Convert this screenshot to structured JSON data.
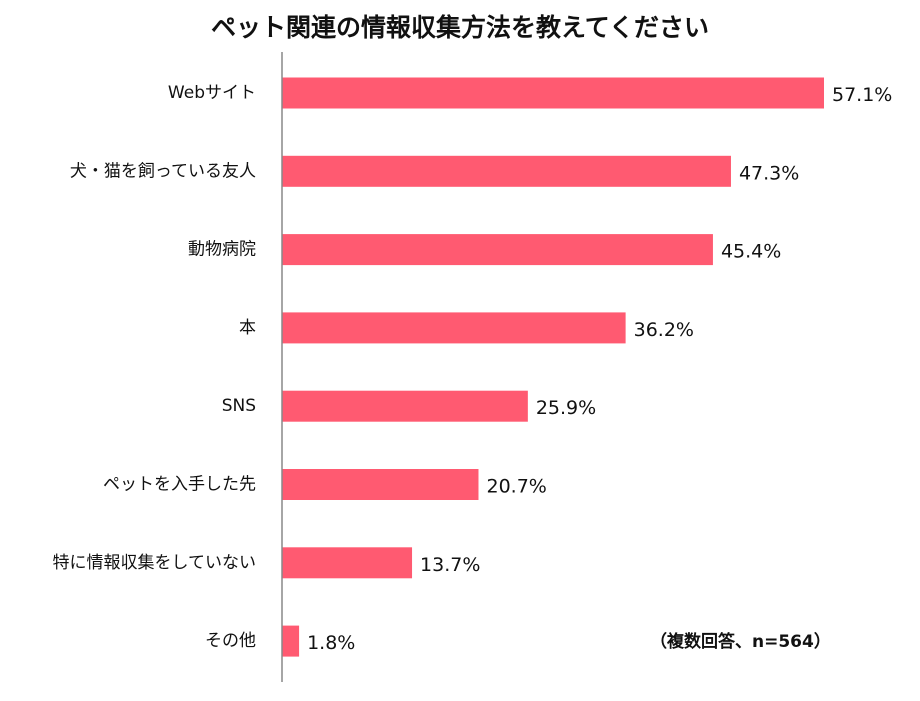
{
  "chart_data": {
    "type": "bar",
    "orientation": "horizontal",
    "title": "ペット関連の情報収集方法を教えてください",
    "categories": [
      "Webサイト",
      "犬・猫を飼っている友人",
      "動物病院",
      "本",
      "SNS",
      "ペットを入手した先",
      "特に情報収集をしていない",
      "その他"
    ],
    "values": [
      57.1,
      47.3,
      45.4,
      36.2,
      25.9,
      20.7,
      13.7,
      1.8
    ],
    "value_labels": [
      "57.1%",
      "47.3%",
      "45.4%",
      "36.2%",
      "25.9%",
      "20.7%",
      "13.7%",
      "1.8%"
    ],
    "xlim": [
      0,
      60
    ],
    "grid": false,
    "bar_color": "#ff5a71",
    "axis_color": "#888888",
    "note": "（複数回答、n=564）"
  }
}
